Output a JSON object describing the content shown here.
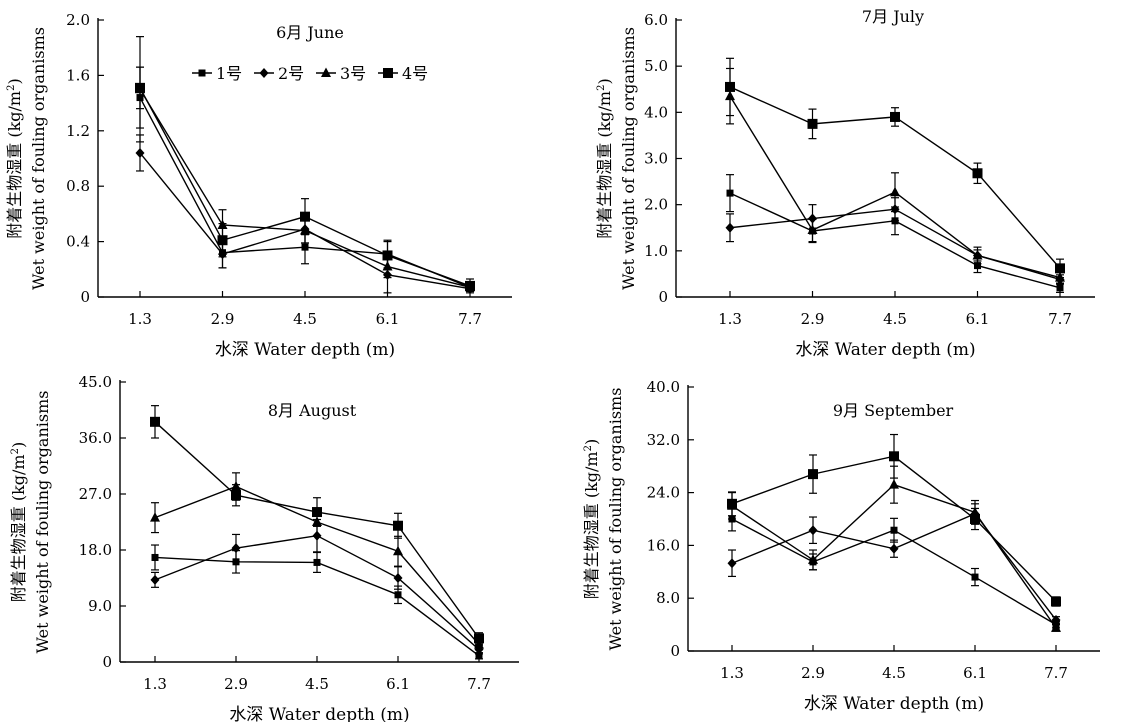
{
  "chart_data": [
    {
      "type": "line",
      "title": "6月 June",
      "xlabel": "水深 Water depth (m)",
      "ylabel": [
        "附着生物湿重 (kg/m",
        "2",
        ")"
      ],
      "ylabel2": "Wet weight of fouling organisms",
      "categories": [
        "1.3",
        "2.9",
        "4.5",
        "6.1",
        "7.7"
      ],
      "ylim": [
        0,
        2.0
      ],
      "yticks": [
        {
          "v": 0,
          "label": "0"
        },
        {
          "v": 0.4,
          "label": "0.4"
        },
        {
          "v": 0.8,
          "label": "0.8"
        },
        {
          "v": 1.2,
          "label": "1.2"
        },
        {
          "v": 1.6,
          "label": "1.6"
        },
        {
          "v": 2.0,
          "label": "2.0"
        }
      ],
      "legend": [
        "1号",
        "2号",
        "3号",
        "4号"
      ],
      "series": [
        {
          "name": "1号",
          "marker": "square-small",
          "values": [
            1.44,
            0.32,
            0.36,
            0.31,
            0.07
          ],
          "err": [
            0.22,
            0.11,
            0.12,
            0.1,
            0.02
          ]
        },
        {
          "name": "2号",
          "marker": "diamond",
          "values": [
            1.04,
            0.31,
            0.49,
            0.16,
            0.06
          ],
          "err": [
            0.13,
            0.1,
            0.1,
            0.13,
            0.02
          ]
        },
        {
          "name": "3号",
          "marker": "triangle",
          "values": [
            1.5,
            0.52,
            0.48,
            0.22,
            0.07
          ],
          "err": [
            0.38,
            0.11,
            0.09,
            0.08,
            0.02
          ]
        },
        {
          "name": "4号",
          "marker": "square",
          "values": [
            1.51,
            0.41,
            0.58,
            0.3,
            0.08
          ],
          "err": [
            0.15,
            0.12,
            0.13,
            0.1,
            0.05
          ]
        }
      ]
    },
    {
      "type": "line",
      "title": "7月 July",
      "xlabel": "水深 Water depth (m)",
      "ylabel": [
        "附着生物湿重 (kg/m",
        "2",
        ")"
      ],
      "ylabel2": "Wet weight of fouling organisms",
      "categories": [
        "1.3",
        "2.9",
        "4.5",
        "6.1",
        "7.7"
      ],
      "ylim": [
        0,
        6.0
      ],
      "yticks": [
        {
          "v": 0,
          "label": "0"
        },
        {
          "v": 1,
          "label": "1.0"
        },
        {
          "v": 2,
          "label": "2.0"
        },
        {
          "v": 3,
          "label": "3.0"
        },
        {
          "v": 4,
          "label": "4.0"
        },
        {
          "v": 5,
          "label": "5.0"
        },
        {
          "v": 6,
          "label": "6.0"
        }
      ],
      "series": [
        {
          "name": "1号",
          "marker": "square-small",
          "values": [
            2.25,
            1.43,
            1.65,
            0.68,
            0.2
          ],
          "err": [
            0.4,
            0.25,
            0.3,
            0.15,
            0.1
          ]
        },
        {
          "name": "2号",
          "marker": "diamond",
          "values": [
            1.5,
            1.7,
            1.9,
            0.9,
            0.38
          ],
          "err": [
            0.3,
            0.3,
            0.25,
            0.12,
            0.1
          ]
        },
        {
          "name": "3号",
          "marker": "triangle",
          "values": [
            4.35,
            1.45,
            2.27,
            0.9,
            0.42
          ],
          "err": [
            0.6,
            0.25,
            0.42,
            0.18,
            0.12
          ]
        },
        {
          "name": "4号",
          "marker": "square",
          "values": [
            4.55,
            3.75,
            3.9,
            2.68,
            0.62
          ],
          "err": [
            0.62,
            0.32,
            0.2,
            0.22,
            0.2
          ]
        }
      ]
    },
    {
      "type": "line",
      "title": "8月 August",
      "xlabel": "水深 Water depth (m)",
      "ylabel": [
        "附着生物湿重 (kg/m",
        "2",
        ")"
      ],
      "ylabel2": "Wet weight of fouling organisms",
      "categories": [
        "1.3",
        "2.9",
        "4.5",
        "6.1",
        "7.7"
      ],
      "ylim": [
        0,
        45.0
      ],
      "yticks": [
        {
          "v": 0,
          "label": "0"
        },
        {
          "v": 9,
          "label": "9.0"
        },
        {
          "v": 18,
          "label": "18.0"
        },
        {
          "v": 27,
          "label": "27.0"
        },
        {
          "v": 36,
          "label": "36.0"
        },
        {
          "v": 45,
          "label": "45.0"
        }
      ],
      "series": [
        {
          "name": "1号",
          "marker": "square-small",
          "values": [
            16.8,
            16.1,
            16.0,
            10.8,
            1.0
          ],
          "err": [
            2.0,
            1.8,
            1.6,
            1.4,
            0.5
          ]
        },
        {
          "name": "2号",
          "marker": "diamond",
          "values": [
            13.2,
            18.3,
            20.3,
            13.5,
            2.0
          ],
          "err": [
            1.2,
            2.2,
            2.6,
            1.8,
            0.7
          ]
        },
        {
          "name": "3号",
          "marker": "triangle",
          "values": [
            23.2,
            28.2,
            22.5,
            17.8,
            2.8
          ],
          "err": [
            2.4,
            2.2,
            2.2,
            2.4,
            0.8
          ]
        },
        {
          "name": "4号",
          "marker": "square",
          "values": [
            38.6,
            26.8,
            24.1,
            21.9,
            3.8
          ],
          "err": [
            2.6,
            1.7,
            2.3,
            2.0,
            0.9
          ]
        }
      ]
    },
    {
      "type": "line",
      "title": "9月 September",
      "xlabel": "水深 Water depth (m)",
      "ylabel": [
        "附着生物湿重 (kg/m",
        "2",
        ")"
      ],
      "ylabel2": "Wet weight of fouling organisms",
      "categories": [
        "1.3",
        "2.9",
        "4.5",
        "6.1",
        "7.7"
      ],
      "ylim": [
        0,
        40.0
      ],
      "yticks": [
        {
          "v": 0,
          "label": "0"
        },
        {
          "v": 8,
          "label": "8.0"
        },
        {
          "v": 16,
          "label": "16.0"
        },
        {
          "v": 24,
          "label": "24.0"
        },
        {
          "v": 32,
          "label": "32.0"
        },
        {
          "v": 40,
          "label": "40.0"
        }
      ],
      "series": [
        {
          "name": "1号",
          "marker": "square-small",
          "values": [
            20.0,
            13.5,
            18.3,
            11.2,
            4.0
          ],
          "err": [
            1.8,
            1.2,
            1.8,
            1.3,
            0.5
          ]
        },
        {
          "name": "2号",
          "marker": "diamond",
          "values": [
            13.3,
            18.3,
            15.5,
            20.8,
            4.7
          ],
          "err": [
            2.0,
            2.0,
            1.3,
            1.5,
            0.5
          ]
        },
        {
          "name": "3号",
          "marker": "triangle",
          "values": [
            22.0,
            13.8,
            25.2,
            21.0,
            3.5
          ],
          "err": [
            2.0,
            1.5,
            2.8,
            1.8,
            0.5
          ]
        },
        {
          "name": "4号",
          "marker": "square",
          "values": [
            22.3,
            26.8,
            29.5,
            20.0,
            7.5
          ],
          "err": [
            1.8,
            2.9,
            3.3,
            1.6,
            0.7
          ]
        }
      ]
    }
  ]
}
